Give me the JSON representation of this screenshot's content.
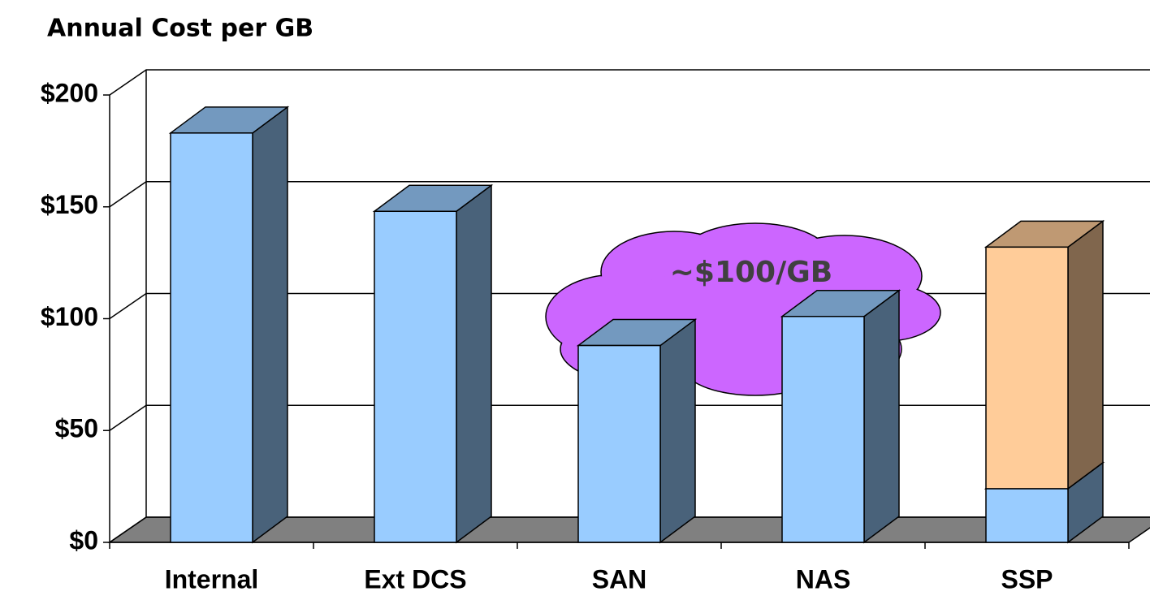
{
  "chart_data": {
    "type": "bar3d",
    "title": "Annual Cost per GB",
    "categories": [
      "Internal",
      "Ext DCS",
      "SAN",
      "NAS",
      "SSP"
    ],
    "series": [
      {
        "color": "#99ccff",
        "values": [
          183,
          148,
          88,
          101,
          24
        ]
      },
      {
        "color": "#ffcc99",
        "values": [
          null,
          null,
          null,
          null,
          108
        ]
      }
    ],
    "stacked": true,
    "ylim": [
      0,
      200
    ],
    "yticks": [
      {
        "value": 0,
        "label": "$0"
      },
      {
        "value": 50,
        "label": "$50"
      },
      {
        "value": 100,
        "label": "$100"
      },
      {
        "value": 150,
        "label": "$150"
      },
      {
        "value": 200,
        "label": "$200"
      }
    ],
    "grid": true,
    "annotations": [
      "~$100/GB"
    ]
  }
}
